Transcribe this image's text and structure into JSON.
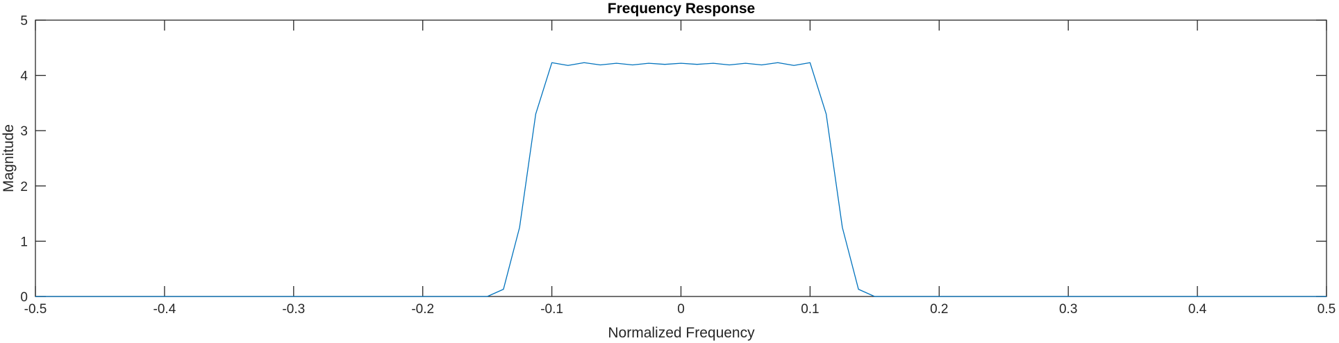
{
  "chart_data": {
    "type": "line",
    "title": "Frequency Response",
    "xlabel": "Normalized Frequency",
    "ylabel": "Magnitude",
    "xlim": [
      -0.5,
      0.5
    ],
    "ylim": [
      0,
      5
    ],
    "xticks": [
      -0.5,
      -0.4,
      -0.3,
      -0.2,
      -0.1,
      0,
      0.1,
      0.2,
      0.3,
      0.4,
      0.5
    ],
    "xtick_labels": [
      "-0.5",
      "-0.4",
      "-0.3",
      "-0.2",
      "-0.1",
      "0",
      "0.1",
      "0.2",
      "0.3",
      "0.4",
      "0.5"
    ],
    "yticks": [
      0,
      1,
      2,
      3,
      4,
      5
    ],
    "ytick_labels": [
      "0",
      "1",
      "2",
      "3",
      "4",
      "5"
    ],
    "grid": false,
    "box": true,
    "colors": {
      "line": "#0072BD",
      "axes": "#262626"
    },
    "series": [
      {
        "x": [
          -0.5,
          -0.15,
          -0.1375,
          -0.125,
          -0.1125,
          -0.1,
          -0.0875,
          -0.075,
          -0.0625,
          -0.05,
          -0.0375,
          -0.025,
          -0.0125,
          0,
          0.0125,
          0.025,
          0.0375,
          0.05,
          0.0625,
          0.075,
          0.0875,
          0.1,
          0.1125,
          0.125,
          0.1375,
          0.15,
          0.5
        ],
        "y": [
          0,
          0,
          0.13,
          1.25,
          3.3,
          4.23,
          4.18,
          4.23,
          4.19,
          4.22,
          4.19,
          4.22,
          4.2,
          4.22,
          4.2,
          4.22,
          4.19,
          4.22,
          4.19,
          4.23,
          4.18,
          4.23,
          3.3,
          1.25,
          0.13,
          0,
          0
        ]
      }
    ]
  }
}
